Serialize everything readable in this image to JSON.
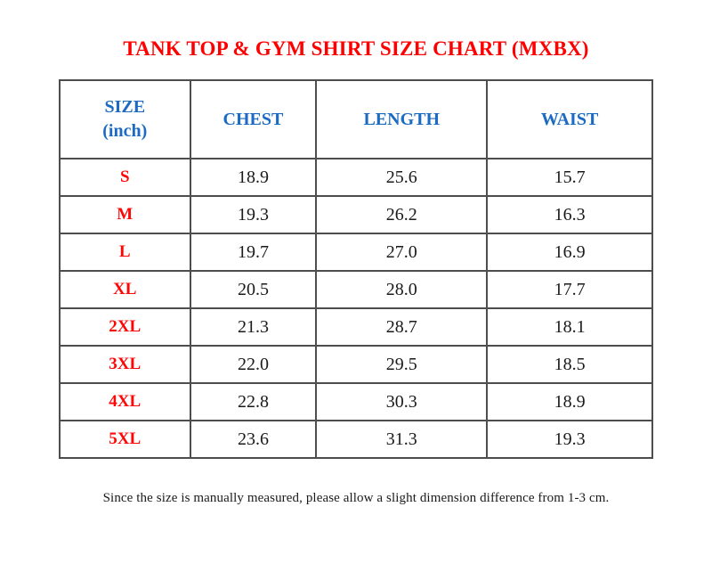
{
  "page": {
    "title": "TANK TOP & GYM SHIRT SIZE CHART (MXBX)",
    "footnote": "Since the size is manually measured, please allow a slight dimension difference from 1-3 cm."
  },
  "colors": {
    "title_red": "#fe0000",
    "label_red": "#fe0606",
    "header_blue": "#1b6bc3",
    "value_black": "#1a1a1a",
    "border_gray": "#4d4d4d",
    "bg": "#ffffff"
  },
  "chart_data": {
    "type": "table",
    "title": "TANK TOP & GYM SHIRT SIZE CHART (MXBX)",
    "unit": "inch",
    "columns": [
      "SIZE\n(inch)",
      "CHEST",
      "LENGTH",
      "WAIST"
    ],
    "rows": [
      {
        "size": "S",
        "chest": "18.9",
        "length": "25.6",
        "waist": "15.7"
      },
      {
        "size": "M",
        "chest": "19.3",
        "length": "26.2",
        "waist": "16.3"
      },
      {
        "size": "L",
        "chest": "19.7",
        "length": "27.0",
        "waist": "16.9"
      },
      {
        "size": "XL",
        "chest": "20.5",
        "length": "28.0",
        "waist": "17.7"
      },
      {
        "size": "2XL",
        "chest": "21.3",
        "length": "28.7",
        "waist": "18.1"
      },
      {
        "size": "3XL",
        "chest": "22.0",
        "length": "29.5",
        "waist": "18.5"
      },
      {
        "size": "4XL",
        "chest": "22.8",
        "length": "30.3",
        "waist": "18.9"
      },
      {
        "size": "5XL",
        "chest": "23.6",
        "length": "31.3",
        "waist": "19.3"
      }
    ],
    "footnote": "Since the size is manually measured, please allow a slight dimension difference from 1-3 cm."
  }
}
